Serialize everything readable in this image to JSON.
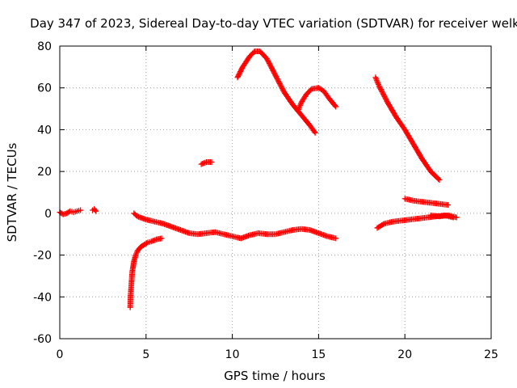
{
  "chart_data": {
    "type": "scatter",
    "title": "Day 347 of 2023, Sidereal Day-to-day VTEC variation (SDTVAR) for receiver welk",
    "xlabel": "GPS time / hours",
    "ylabel": "SDTVAR / TECUs",
    "xlim": [
      0,
      25
    ],
    "ylim": [
      -60,
      80
    ],
    "xticks": [
      0,
      5,
      10,
      15,
      20,
      25
    ],
    "yticks": [
      -60,
      -40,
      -20,
      0,
      20,
      40,
      60,
      80
    ],
    "grid": true,
    "marker": "+",
    "color": "#ff0000",
    "segments": [
      {
        "x": [
          0.0,
          0.2,
          0.4,
          0.6,
          0.8,
          1.0,
          1.2
        ],
        "y": [
          0.5,
          -0.5,
          0.0,
          1.0,
          0.5,
          1.0,
          1.5
        ]
      },
      {
        "x": [
          1.9,
          2.0,
          2.1
        ],
        "y": [
          1.5,
          2.0,
          1.0
        ]
      },
      {
        "x": [
          4.08,
          4.1,
          4.15,
          4.2,
          4.3,
          4.4,
          4.5,
          4.7,
          4.9,
          5.1,
          5.3,
          5.6,
          5.9
        ],
        "y": [
          -45,
          -40,
          -34,
          -28,
          -23,
          -20,
          -18,
          -16,
          -15,
          -14,
          -13.5,
          -12.5,
          -12
        ]
      },
      {
        "x": [
          4.3,
          4.5,
          5.0,
          5.5,
          6.0,
          6.5,
          7.0,
          7.5,
          8.0,
          8.5,
          9.0,
          9.5,
          10.0,
          10.5,
          11.0,
          11.5,
          12.0,
          12.5,
          13.0,
          13.5,
          14.0,
          14.5,
          15.0,
          15.5,
          16.0
        ],
        "y": [
          0,
          -1.5,
          -3,
          -4,
          -5,
          -6.5,
          -8,
          -9.5,
          -10,
          -9.5,
          -9,
          -10,
          -11,
          -12,
          -10.5,
          -9.5,
          -10,
          -10,
          -9,
          -8,
          -7.5,
          -8,
          -9.5,
          -11,
          -12
        ]
      },
      {
        "x": [
          8.2,
          8.5,
          8.8
        ],
        "y": [
          23.5,
          24.5,
          24.5
        ]
      },
      {
        "x": [
          10.3,
          10.6,
          11.0,
          11.3,
          11.6,
          12.0,
          12.5,
          13.0,
          13.5,
          14.0,
          14.5,
          14.8
        ],
        "y": [
          65,
          70,
          75,
          77.5,
          77.5,
          74,
          66,
          58,
          52,
          47,
          42,
          38.5
        ]
      },
      {
        "x": [
          13.8,
          14.0,
          14.3,
          14.6,
          15.0,
          15.3,
          15.6,
          16.0
        ],
        "y": [
          49,
          53,
          57,
          59.5,
          60,
          58.5,
          55,
          51
        ]
      },
      {
        "x": [
          18.3,
          18.5,
          19.0,
          19.5,
          20.0,
          20.5,
          21.0,
          21.5,
          22.0
        ],
        "y": [
          65,
          61,
          53,
          46,
          40,
          33,
          26,
          20,
          16
        ]
      },
      {
        "x": [
          18.4,
          18.8,
          19.3,
          19.8,
          20.3,
          20.8,
          21.3,
          21.8,
          22.3,
          22.8
        ],
        "y": [
          -7,
          -5,
          -4,
          -3.5,
          -3,
          -2.5,
          -2,
          -1.5,
          -1,
          -2
        ]
      },
      {
        "x": [
          20.0,
          20.5,
          21.0,
          21.5,
          22.0,
          22.5
        ],
        "y": [
          7,
          6,
          5.5,
          5,
          4.5,
          4
        ]
      },
      {
        "x": [
          21.5,
          22.0,
          22.5,
          23.0
        ],
        "y": [
          -1,
          -1.5,
          -1,
          -2
        ]
      }
    ]
  }
}
